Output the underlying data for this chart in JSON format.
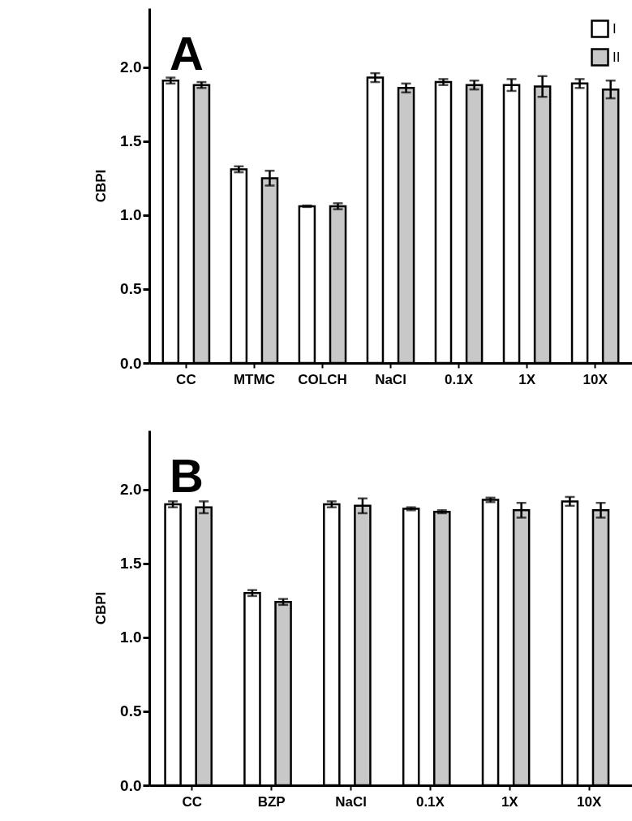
{
  "chart_data": [
    {
      "type": "bar",
      "title": "A",
      "ylabel": "CBPI",
      "categories": [
        "CC",
        "MTMC",
        "COLCH",
        "NaCl",
        "0.1X",
        "1X",
        "10X"
      ],
      "series": [
        {
          "name": "I",
          "color": "#ffffff",
          "values": [
            1.91,
            1.31,
            1.06,
            1.93,
            1.9,
            1.88,
            1.89
          ],
          "errors": [
            0.02,
            0.02,
            0.005,
            0.03,
            0.02,
            0.04,
            0.03
          ]
        },
        {
          "name": "II",
          "color": "#c8c8c8",
          "values": [
            1.88,
            1.25,
            1.06,
            1.86,
            1.88,
            1.87,
            1.85
          ],
          "errors": [
            0.02,
            0.05,
            0.02,
            0.03,
            0.03,
            0.07,
            0.06
          ]
        }
      ],
      "ylim": [
        0,
        2.4
      ],
      "yticks": [
        {
          "value": 0,
          "label": "0.0"
        },
        {
          "value": 0.5,
          "label": "0.5"
        },
        {
          "value": 1,
          "label": "1.0"
        },
        {
          "value": 1.5,
          "label": "1.5"
        },
        {
          "value": 2,
          "label": "2.0"
        }
      ],
      "legend": "top right"
    },
    {
      "type": "bar",
      "title": "B",
      "ylabel": "CBPI",
      "categories": [
        "CC",
        "BZP",
        "NaCl",
        "0.1X",
        "1X",
        "10X"
      ],
      "series": [
        {
          "name": "I",
          "color": "#ffffff",
          "values": [
            1.9,
            1.3,
            1.9,
            1.87,
            1.93,
            1.92
          ],
          "errors": [
            0.02,
            0.02,
            0.02,
            0.01,
            0.015,
            0.03
          ]
        },
        {
          "name": "II",
          "color": "#c8c8c8",
          "values": [
            1.88,
            1.24,
            1.89,
            1.85,
            1.86,
            1.86
          ],
          "errors": [
            0.04,
            0.02,
            0.05,
            0.01,
            0.05,
            0.05
          ]
        }
      ],
      "ylim": [
        0,
        2.4
      ],
      "yticks": [
        {
          "value": 0,
          "label": "0.0"
        },
        {
          "value": 0.5,
          "label": "0.5"
        },
        {
          "value": 1,
          "label": "1.0"
        },
        {
          "value": 1.5,
          "label": "1.5"
        },
        {
          "value": 2,
          "label": "2.0"
        }
      ],
      "legend": "top right"
    }
  ]
}
